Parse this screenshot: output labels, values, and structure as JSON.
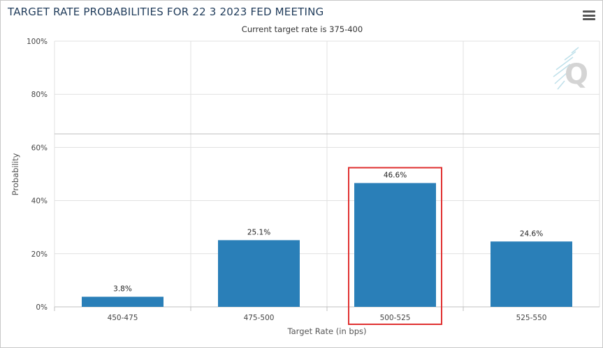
{
  "header": {
    "title": "TARGET RATE PROBABILITIES FOR 22 3 2023 FED MEETING",
    "subtitle": "Current target rate is 375-400",
    "menu_icon": "hamburger-menu-icon"
  },
  "watermark": {
    "icon": "q-logo-icon",
    "letter": "Q"
  },
  "colors": {
    "bar": "#2a7fb8",
    "highlight": "#e03030",
    "grid": "#e0e0e0"
  },
  "chart_data": {
    "type": "bar",
    "categories": [
      "450-475",
      "475-500",
      "500-525",
      "525-550"
    ],
    "values": [
      3.8,
      25.1,
      46.6,
      24.6
    ],
    "value_labels": [
      "3.8%",
      "25.1%",
      "46.6%",
      "24.6%"
    ],
    "title": "TARGET RATE PROBABILITIES FOR 22 3 2023 FED MEETING",
    "subtitle": "Current target rate is 375-400",
    "xlabel": "Target Rate (in bps)",
    "ylabel": "Probability",
    "ylim": [
      0,
      100
    ],
    "yticks": [
      0,
      20,
      40,
      60,
      80,
      100
    ],
    "ytick_labels": [
      "0%",
      "20%",
      "40%",
      "60%",
      "80%",
      "100%"
    ],
    "grid": true,
    "highlighted_category": "500-525"
  }
}
